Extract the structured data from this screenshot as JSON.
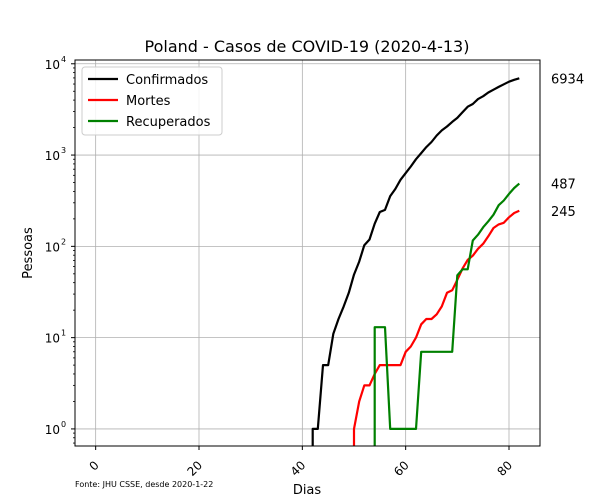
{
  "chart_data": {
    "type": "line",
    "title": "Poland - Casos de COVID-19 (2020-4-13)",
    "xlabel": "Dias",
    "ylabel": "Pessoas",
    "yscale": "log",
    "xlim": [
      -4,
      86
    ],
    "ylim": [
      0.65,
      11000
    ],
    "x_ticks": [
      0,
      20,
      40,
      60,
      80
    ],
    "y_ticks": [
      {
        "value": 1,
        "base": "10",
        "exp": "0"
      },
      {
        "value": 10,
        "base": "10",
        "exp": "1"
      },
      {
        "value": 100,
        "base": "10",
        "exp": "2"
      },
      {
        "value": 1000,
        "base": "10",
        "exp": "3"
      },
      {
        "value": 10000,
        "base": "10",
        "exp": "4"
      }
    ],
    "grid": true,
    "legend_position": "top-left",
    "source": "Fonte: JHU CSSE, desde 2020-1-22",
    "series": [
      {
        "name": "Confirmados",
        "color": "#000000",
        "end_label": "6934",
        "points": [
          [
            42,
            1
          ],
          [
            43,
            1
          ],
          [
            44,
            5
          ],
          [
            45,
            5
          ],
          [
            46,
            11
          ],
          [
            47,
            16
          ],
          [
            48,
            22
          ],
          [
            49,
            31
          ],
          [
            50,
            49
          ],
          [
            51,
            68
          ],
          [
            52,
            103
          ],
          [
            53,
            119
          ],
          [
            54,
            177
          ],
          [
            55,
            238
          ],
          [
            56,
            251
          ],
          [
            57,
            355
          ],
          [
            58,
            425
          ],
          [
            59,
            536
          ],
          [
            60,
            634
          ],
          [
            61,
            749
          ],
          [
            62,
            901
          ],
          [
            63,
            1051
          ],
          [
            64,
            1221
          ],
          [
            65,
            1389
          ],
          [
            66,
            1638
          ],
          [
            67,
            1862
          ],
          [
            68,
            2055
          ],
          [
            69,
            2311
          ],
          [
            70,
            2554
          ],
          [
            71,
            2946
          ],
          [
            72,
            3383
          ],
          [
            73,
            3627
          ],
          [
            74,
            4102
          ],
          [
            75,
            4413
          ],
          [
            76,
            4848
          ],
          [
            77,
            5205
          ],
          [
            78,
            5575
          ],
          [
            79,
            5955
          ],
          [
            80,
            6356
          ],
          [
            81,
            6674
          ],
          [
            82,
            6934
          ]
        ]
      },
      {
        "name": "Mortes",
        "color": "#ff0000",
        "end_label": "245",
        "points": [
          [
            50,
            1
          ],
          [
            51,
            2
          ],
          [
            52,
            3
          ],
          [
            53,
            3
          ],
          [
            54,
            4
          ],
          [
            55,
            5
          ],
          [
            56,
            5
          ],
          [
            57,
            5
          ],
          [
            58,
            5
          ],
          [
            59,
            5
          ],
          [
            60,
            7
          ],
          [
            61,
            8
          ],
          [
            62,
            10
          ],
          [
            63,
            14
          ],
          [
            64,
            16
          ],
          [
            65,
            16
          ],
          [
            66,
            18
          ],
          [
            67,
            22
          ],
          [
            68,
            31
          ],
          [
            69,
            33
          ],
          [
            70,
            43
          ],
          [
            71,
            57
          ],
          [
            72,
            71
          ],
          [
            73,
            79
          ],
          [
            74,
            94
          ],
          [
            75,
            107
          ],
          [
            76,
            129
          ],
          [
            77,
            159
          ],
          [
            78,
            174
          ],
          [
            79,
            181
          ],
          [
            80,
            208
          ],
          [
            81,
            232
          ],
          [
            82,
            245
          ]
        ]
      },
      {
        "name": "Recuperados",
        "color": "#008000",
        "end_label": "487",
        "points": [
          [
            54,
            13
          ],
          [
            55,
            13
          ],
          [
            56,
            13
          ],
          [
            57,
            1
          ],
          [
            58,
            1
          ],
          [
            59,
            1
          ],
          [
            60,
            1
          ],
          [
            61,
            1
          ],
          [
            62,
            1
          ],
          [
            63,
            7
          ],
          [
            64,
            7
          ],
          [
            65,
            7
          ],
          [
            66,
            7
          ],
          [
            67,
            7
          ],
          [
            68,
            7
          ],
          [
            69,
            7
          ],
          [
            70,
            48
          ],
          [
            71,
            56
          ],
          [
            72,
            56
          ],
          [
            73,
            116
          ],
          [
            74,
            134
          ],
          [
            75,
            162
          ],
          [
            76,
            188
          ],
          [
            77,
            222
          ],
          [
            78,
            282
          ],
          [
            79,
            318
          ],
          [
            80,
            375
          ],
          [
            81,
            436
          ],
          [
            82,
            487
          ]
        ]
      }
    ]
  }
}
